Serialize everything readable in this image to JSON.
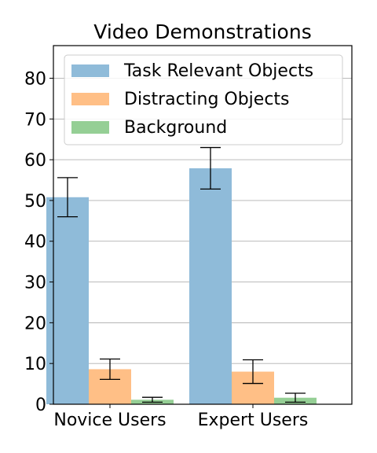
{
  "chart_data": {
    "type": "bar",
    "title": "Video Demonstrations",
    "xlabel": "",
    "ylabel": "",
    "categories": [
      "Novice Users",
      "Expert Users"
    ],
    "ylim": [
      0,
      88
    ],
    "yticks": [
      0,
      10,
      20,
      30,
      40,
      50,
      60,
      70,
      80
    ],
    "grid": "horizontal",
    "legend_position": "top",
    "series": [
      {
        "name": "Task Relevant Objects",
        "color": "#8fbbd9",
        "values": [
          50.8,
          57.9
        ],
        "errors": [
          4.8,
          5.1
        ]
      },
      {
        "name": "Distracting Objects",
        "color": "#ffbf86",
        "values": [
          8.6,
          8.0
        ],
        "errors": [
          2.5,
          2.9
        ]
      },
      {
        "name": "Background",
        "color": "#95cf95",
        "values": [
          1.1,
          1.6
        ],
        "errors": [
          0.6,
          1.1
        ]
      }
    ]
  }
}
